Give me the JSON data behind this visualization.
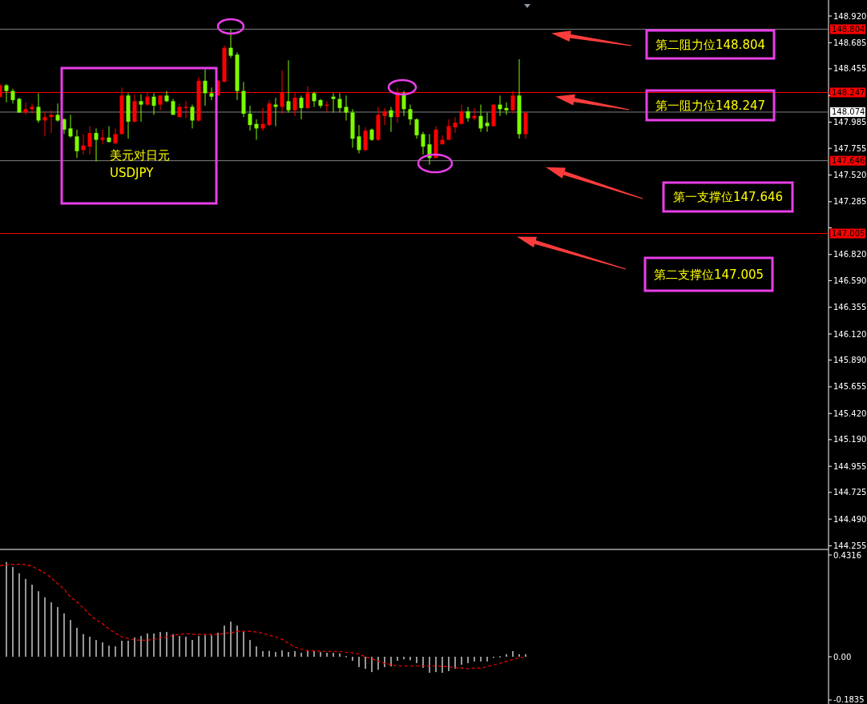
{
  "chart_data": [
    {
      "type": "candlestick",
      "tick_labels": "y",
      "categories": [
        null,
        null,
        null,
        null,
        null,
        null,
        null,
        null,
        null,
        null,
        null,
        null,
        null,
        null,
        null,
        null,
        null,
        null,
        null,
        null,
        null,
        null,
        null,
        null,
        null,
        null,
        null,
        null,
        null,
        null,
        null,
        null,
        null,
        null,
        null,
        null,
        null,
        null,
        null,
        null,
        null,
        null,
        null,
        null,
        null,
        null,
        null,
        null,
        null,
        null,
        null,
        null,
        null,
        null,
        null,
        null,
        null,
        null,
        null,
        null,
        null,
        null,
        null,
        null,
        null,
        null,
        null,
        null,
        null,
        null,
        null,
        null,
        null,
        null,
        null,
        null,
        null,
        null,
        null,
        null,
        null,
        null,
        null,
        null,
        null,
        null,
        null,
        null,
        null,
        null,
        null,
        null,
        null,
        null,
        null,
        null,
        null,
        null,
        null,
        null,
        null,
        null,
        null,
        null,
        null,
        null,
        null,
        null,
        null,
        null,
        null,
        null,
        null,
        null,
        null,
        null,
        null,
        null,
        null,
        null,
        null,
        null,
        null,
        null,
        null,
        null,
        null,
        null,
        null,
        null
      ],
      "ohlc": [
        [
          148.21,
          148.32,
          148.2,
          148.31
        ],
        [
          148.31,
          148.32,
          148.16,
          148.26
        ],
        [
          148.26,
          148.28,
          148.15,
          148.18
        ],
        [
          148.19,
          148.2,
          148.07,
          148.07
        ],
        [
          148.07,
          148.16,
          148.05,
          148.1
        ],
        [
          148.1,
          148.15,
          148.06,
          148.12
        ],
        [
          148.12,
          148.24,
          147.98,
          148.0
        ],
        [
          148.0,
          148.08,
          147.86,
          148.03
        ],
        [
          148.03,
          148.09,
          147.89,
          148.05
        ],
        [
          148.05,
          148.15,
          147.99,
          148.0
        ],
        [
          148.01,
          148.02,
          147.88,
          147.92
        ],
        [
          147.93,
          148.05,
          147.85,
          147.86
        ],
        [
          147.86,
          147.92,
          147.67,
          147.73
        ],
        [
          147.74,
          147.88,
          147.7,
          147.78
        ],
        [
          147.77,
          147.95,
          147.7,
          147.89
        ],
        [
          147.89,
          147.93,
          147.64,
          147.83
        ],
        [
          147.83,
          147.92,
          147.79,
          147.85
        ],
        [
          147.85,
          147.95,
          147.81,
          147.81
        ],
        [
          147.8,
          147.93,
          147.79,
          147.88
        ],
        [
          147.88,
          148.29,
          147.88,
          148.22
        ],
        [
          148.22,
          148.24,
          147.84,
          147.99
        ],
        [
          147.99,
          148.23,
          147.98,
          148.17
        ],
        [
          148.17,
          148.23,
          147.99,
          148.14
        ],
        [
          148.14,
          148.25,
          148.13,
          148.21
        ],
        [
          148.21,
          148.24,
          148.05,
          148.13
        ],
        [
          148.14,
          148.22,
          148.09,
          148.22
        ],
        [
          148.22,
          148.26,
          148.16,
          148.17
        ],
        [
          148.17,
          148.19,
          148.05,
          148.05
        ],
        [
          148.03,
          148.15,
          148.03,
          148.12
        ],
        [
          148.11,
          148.17,
          148.02,
          148.12
        ],
        [
          148.12,
          148.14,
          147.93,
          148.0
        ],
        [
          148.0,
          148.38,
          147.99,
          148.35
        ],
        [
          148.35,
          148.45,
          148.13,
          148.24
        ],
        [
          148.24,
          148.29,
          148.18,
          148.21
        ],
        [
          148.22,
          148.36,
          148.22,
          148.35
        ],
        [
          148.34,
          148.66,
          148.34,
          148.64
        ],
        [
          148.64,
          148.8,
          148.55,
          148.57
        ],
        [
          148.58,
          148.6,
          148.18,
          148.26
        ],
        [
          148.26,
          148.34,
          148.03,
          148.06
        ],
        [
          148.06,
          148.13,
          147.91,
          147.96
        ],
        [
          147.97,
          148.01,
          147.83,
          147.93
        ],
        [
          147.93,
          148.11,
          147.91,
          147.97
        ],
        [
          147.96,
          148.18,
          147.95,
          148.15
        ],
        [
          148.14,
          148.2,
          147.95,
          148.12
        ],
        [
          148.12,
          148.44,
          148.06,
          148.25
        ],
        [
          148.17,
          148.53,
          148.07,
          148.09
        ],
        [
          148.09,
          148.24,
          148.04,
          148.2
        ],
        [
          148.2,
          148.22,
          148.01,
          148.11
        ],
        [
          148.11,
          148.3,
          148.1,
          148.24
        ],
        [
          148.24,
          148.25,
          148.12,
          148.17
        ],
        [
          148.18,
          148.19,
          148.11,
          148.13
        ],
        [
          148.13,
          148.17,
          148.07,
          148.14
        ],
        [
          148.21,
          148.24,
          148.07,
          148.19
        ],
        [
          148.19,
          148.24,
          148.07,
          148.11
        ],
        [
          148.12,
          148.22,
          148.0,
          148.07
        ],
        [
          148.07,
          148.1,
          147.76,
          147.84
        ],
        [
          147.86,
          147.96,
          147.71,
          147.74
        ],
        [
          147.74,
          147.94,
          147.73,
          147.91
        ],
        [
          147.92,
          147.93,
          147.82,
          147.83
        ],
        [
          147.83,
          148.12,
          147.82,
          148.05
        ],
        [
          148.04,
          148.11,
          147.96,
          148.08
        ],
        [
          148.09,
          148.12,
          147.9,
          148.03
        ],
        [
          148.03,
          148.29,
          147.98,
          148.23
        ],
        [
          148.24,
          148.26,
          148.04,
          148.1
        ],
        [
          148.1,
          148.14,
          147.96,
          148.01
        ],
        [
          148.01,
          148.02,
          147.84,
          147.87
        ],
        [
          147.88,
          147.9,
          147.7,
          147.77
        ],
        [
          147.79,
          147.88,
          147.61,
          147.67
        ],
        [
          147.67,
          147.95,
          147.67,
          147.92
        ],
        [
          147.79,
          147.87,
          147.79,
          147.83
        ],
        [
          147.83,
          148.01,
          147.83,
          147.95
        ],
        [
          147.94,
          148.03,
          147.89,
          147.98
        ],
        [
          147.97,
          148.14,
          147.97,
          148.08
        ],
        [
          148.08,
          148.12,
          147.99,
          148.02
        ],
        [
          148.02,
          148.11,
          148.0,
          148.04
        ],
        [
          148.04,
          148.14,
          147.9,
          147.93
        ],
        [
          147.98,
          148.07,
          147.9,
          147.95
        ],
        [
          147.95,
          148.14,
          147.95,
          148.14
        ],
        [
          148.14,
          148.22,
          148.04,
          148.1
        ],
        [
          148.11,
          148.16,
          148.05,
          148.09
        ],
        [
          148.09,
          148.26,
          148.06,
          148.22
        ],
        [
          148.22,
          148.54,
          147.84,
          147.88
        ],
        [
          147.88,
          148.07,
          147.84,
          148.07
        ],
        null,
        null,
        null,
        null,
        null,
        null,
        null,
        null,
        null,
        null,
        null,
        null,
        null,
        null,
        null,
        null,
        null,
        null,
        null,
        null,
        null,
        null,
        null,
        null,
        null,
        null,
        null,
        null,
        null,
        null,
        null,
        null,
        null,
        null,
        null,
        null,
        null,
        null,
        null,
        null,
        null,
        null,
        null,
        null,
        null,
        null,
        null
      ],
      "colors": [
        "#ff0000",
        "#7cfc00",
        "#7cfc00",
        "#7cfc00",
        "#ff0000",
        "#ff0000",
        "#7cfc00",
        "#ff0000",
        "#ff0000",
        "#7cfc00",
        "#7cfc00",
        "#7cfc00",
        "#7cfc00",
        "#ff0000",
        "#ff0000",
        "#7cfc00",
        "#ff0000",
        "#7cfc00",
        "#ff0000",
        "#ff0000",
        "#7cfc00",
        "#ff0000",
        "#7cfc00",
        "#ff0000",
        "#7cfc00",
        "#ff0000",
        "#7cfc00",
        "#7cfc00",
        "#ff0000",
        "#ff0000",
        "#7cfc00",
        "#ff0000",
        "#7cfc00",
        "#7cfc00",
        "#ff0000",
        "#ff0000",
        "#7cfc00",
        "#7cfc00",
        "#7cfc00",
        "#7cfc00",
        "#7cfc00",
        "#ff0000",
        "#ff0000",
        "#7cfc00",
        "#ff0000",
        "#7cfc00",
        "#ff0000",
        "#7cfc00",
        "#ff0000",
        "#7cfc00",
        "#7cfc00",
        "#ff0000",
        "#7cfc00",
        "#7cfc00",
        "#7cfc00",
        "#7cfc00",
        "#7cfc00",
        "#ff0000",
        "#7cfc00",
        "#ff0000",
        "#ff0000",
        "#7cfc00",
        "#ff0000",
        "#7cfc00",
        "#7cfc00",
        "#7cfc00",
        "#7cfc00",
        "#7cfc00",
        "#ff0000",
        "#ff0000",
        "#ff0000",
        "#ff0000",
        "#ff0000",
        "#7cfc00",
        "#ff0000",
        "#7cfc00",
        "#7cfc00",
        "#ff0000",
        "#7cfc00",
        "#7cfc00",
        "#ff0000",
        "#7cfc00",
        "#ff0000",
        null,
        null,
        null,
        null,
        null,
        null,
        null,
        null,
        null,
        null,
        null,
        null,
        null,
        null,
        null,
        null,
        null,
        null,
        null,
        null,
        null,
        null,
        null,
        null,
        null,
        null,
        null,
        null,
        null,
        null,
        null,
        null,
        null,
        null,
        null,
        null,
        null,
        null,
        null,
        null,
        null,
        null,
        null,
        null,
        null,
        null,
        null
      ],
      "ylim": [
        144.23,
        149.04
      ],
      "yticks": [
        {
          "value": 148.92,
          "label": "148.920"
        },
        {
          "value": 148.685,
          "label": "148.685"
        },
        {
          "value": 148.455,
          "label": "148.455"
        },
        {
          "value": 148.22,
          "label": null
        },
        {
          "value": 147.985,
          "label": "147.985"
        },
        {
          "value": 147.755,
          "label": "147.755"
        },
        {
          "value": 147.52,
          "label": "147.520"
        },
        {
          "value": 147.285,
          "label": "147.285"
        },
        {
          "value": 147.055,
          "label": null
        },
        {
          "value": 146.82,
          "label": "146.820"
        },
        {
          "value": 146.59,
          "label": "146.590"
        },
        {
          "value": 146.355,
          "label": "146.355"
        },
        {
          "value": 146.12,
          "label": "146.120"
        },
        {
          "value": 145.89,
          "label": "145.890"
        },
        {
          "value": 145.655,
          "label": "145.655"
        },
        {
          "value": 145.42,
          "label": "145.420"
        },
        {
          "value": 145.19,
          "label": "145.190"
        },
        {
          "value": 144.955,
          "label": "144.955"
        },
        {
          "value": 144.725,
          "label": "144.725"
        },
        {
          "value": 144.49,
          "label": "144.490"
        },
        {
          "value": 144.255,
          "label": "144.255"
        }
      ],
      "ref_lines": [
        {
          "axis": "y",
          "value": 148.804,
          "label": "148.804",
          "color": "#808080"
        },
        {
          "axis": "y",
          "value": 148.247,
          "label": "148.247",
          "color": "#ff0000"
        },
        {
          "axis": "y",
          "value": 148.074,
          "label": "148.074",
          "color": "#808080"
        },
        {
          "axis": "y",
          "value": 147.646,
          "label": "147.646",
          "color": "#808080"
        },
        {
          "axis": "y",
          "value": 147.005,
          "label": "147.005",
          "color": "#ff0000"
        }
      ],
      "annotations": [
        "美元对日元",
        "USDJPY",
        {
          "text": "第二阻力位148.804",
          "y": 148.804
        },
        {
          "text": "第一阻力位148.247",
          "y": 148.247
        },
        {
          "text": "第一支撑位147.646",
          "y": 147.646
        },
        {
          "text": "第二支撑位147.005",
          "y": 147.005
        }
      ]
    },
    {
      "type": "bar",
      "tick_labels": "y",
      "categories": [
        null,
        null,
        null,
        null,
        null,
        null,
        null,
        null,
        null,
        null,
        null,
        null,
        null,
        null,
        null,
        null,
        null,
        null,
        null,
        null,
        null,
        null,
        null,
        null,
        null,
        null,
        null,
        null,
        null,
        null,
        null,
        null,
        null,
        null,
        null,
        null,
        null,
        null,
        null,
        null,
        null,
        null,
        null,
        null,
        null,
        null,
        null,
        null,
        null,
        null,
        null,
        null,
        null,
        null,
        null,
        null,
        null,
        null,
        null,
        null,
        null,
        null,
        null,
        null,
        null,
        null,
        null,
        null,
        null,
        null,
        null,
        null,
        null,
        null,
        null,
        null,
        null,
        null,
        null,
        null,
        null,
        null,
        null,
        null,
        null,
        null,
        null,
        null,
        null,
        null,
        null,
        null,
        null,
        null,
        null,
        null,
        null,
        null,
        null,
        null,
        null,
        null,
        null,
        null,
        null,
        null,
        null,
        null,
        null,
        null,
        null,
        null,
        null,
        null,
        null,
        null,
        null,
        null,
        null,
        null,
        null,
        null,
        null,
        null,
        null,
        null,
        null,
        null,
        null,
        null
      ],
      "ylim": [
        -0.1937,
        0.452
      ],
      "yticks": [
        {
          "value": 0.4316,
          "label": "0.4316"
        },
        {
          "value": 0,
          "label": "0.00"
        },
        {
          "value": -0.1835,
          "label": "-0.1835"
        }
      ],
      "series": [
        {
          "type": "bar",
          "color": "#c8c8c8",
          "values": [
            null,
            0.402,
            0.381,
            0.354,
            0.33,
            0.306,
            0.278,
            0.252,
            0.231,
            0.211,
            0.184,
            0.156,
            0.123,
            0.096,
            0.085,
            0.071,
            0.061,
            0.047,
            0.044,
            0.068,
            0.068,
            0.082,
            0.088,
            0.099,
            0.099,
            0.105,
            0.105,
            0.096,
            0.088,
            0.085,
            0.071,
            0.088,
            0.091,
            0.091,
            0.102,
            0.132,
            0.149,
            0.132,
            0.105,
            0.071,
            0.044,
            0.024,
            0.025,
            0.02,
            0.027,
            0.02,
            0.024,
            0.017,
            0.025,
            0.024,
            0.02,
            0.017,
            0.017,
            0.014,
            0.003,
            -0.017,
            -0.044,
            -0.051,
            -0.065,
            -0.055,
            -0.044,
            -0.041,
            -0.017,
            -0.011,
            -0.015,
            -0.027,
            -0.047,
            -0.068,
            -0.065,
            -0.068,
            -0.061,
            -0.051,
            -0.034,
            -0.027,
            -0.02,
            -0.02,
            -0.02,
            -0.003,
            0.002,
            0.011,
            0.024,
            0.011,
            0.011,
            null,
            null,
            null,
            null,
            null,
            null,
            null,
            null,
            null,
            null,
            null,
            null,
            null,
            null,
            null,
            null,
            null,
            null,
            null,
            null,
            null,
            null,
            null,
            null,
            null,
            null,
            null,
            null,
            null,
            null,
            null,
            null,
            null,
            null,
            null,
            null,
            null,
            null,
            null,
            null,
            null,
            null,
            null,
            null,
            null,
            null,
            null
          ]
        },
        {
          "type": "line",
          "color": "#ff0000",
          "line_style": "dashed",
          "values": [
            0.386,
            0.391,
            0.391,
            0.393,
            0.391,
            0.384,
            0.37,
            0.355,
            0.335,
            0.31,
            0.287,
            0.253,
            0.233,
            0.207,
            0.179,
            0.156,
            0.14,
            0.117,
            0.1,
            0.085,
            0.078,
            0.071,
            0.07,
            0.07,
            0.074,
            0.081,
            0.084,
            0.091,
            0.095,
            0.098,
            0.095,
            0.095,
            0.095,
            0.095,
            0.095,
            0.099,
            0.101,
            0.108,
            0.108,
            0.108,
            0.105,
            0.1,
            0.091,
            0.085,
            0.074,
            0.057,
            0.041,
            0.033,
            0.026,
            0.025,
            0.023,
            0.023,
            0.023,
            0.023,
            0.019,
            0.016,
            0.012,
            -0.001,
            -0.008,
            -0.019,
            -0.028,
            -0.033,
            -0.039,
            -0.039,
            -0.039,
            -0.039,
            -0.039,
            -0.039,
            -0.039,
            -0.041,
            -0.042,
            -0.047,
            -0.048,
            -0.051,
            -0.048,
            -0.048,
            -0.042,
            -0.035,
            -0.028,
            -0.019,
            -0.012,
            -0.004,
            -0.002,
            null,
            null,
            null,
            null,
            null,
            null,
            null,
            null,
            null,
            null,
            null,
            null,
            null,
            null,
            null,
            null,
            null,
            null,
            null,
            null,
            null,
            null,
            null,
            null,
            null,
            null,
            null,
            null,
            null,
            null,
            null,
            null,
            null,
            null,
            null,
            null,
            null,
            null,
            null,
            null,
            null,
            null,
            null,
            null,
            null,
            null,
            null
          ]
        }
      ]
    }
  ]
}
